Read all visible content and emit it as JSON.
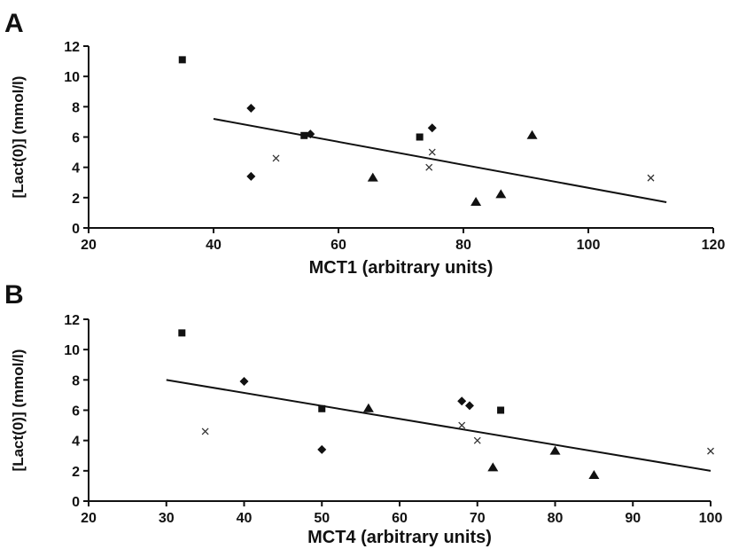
{
  "chart_data": [
    {
      "panel": "A",
      "type": "scatter",
      "xlabel": "MCT1 (arbitrary units)",
      "ylabel": "[Lact(0)] (mmol/l)",
      "xlim": [
        20,
        120
      ],
      "ylim": [
        0,
        12
      ],
      "xticks": [
        20,
        40,
        60,
        80,
        100,
        120
      ],
      "yticks": [
        0,
        2,
        4,
        6,
        8,
        10,
        12
      ],
      "grid": false,
      "series": [
        {
          "marker": "square",
          "points": [
            {
              "x": 35,
              "y": 11.1
            },
            {
              "x": 54.5,
              "y": 6.1
            },
            {
              "x": 73,
              "y": 6.0
            }
          ]
        },
        {
          "marker": "diamond",
          "points": [
            {
              "x": 46,
              "y": 7.9
            },
            {
              "x": 55.5,
              "y": 6.2
            },
            {
              "x": 75,
              "y": 6.6
            },
            {
              "x": 46,
              "y": 3.4
            }
          ]
        },
        {
          "marker": "triangle",
          "points": [
            {
              "x": 65.5,
              "y": 3.3
            },
            {
              "x": 82,
              "y": 1.7
            },
            {
              "x": 86,
              "y": 2.2
            },
            {
              "x": 91,
              "y": 6.1
            }
          ]
        },
        {
          "marker": "cross",
          "points": [
            {
              "x": 50,
              "y": 4.6
            },
            {
              "x": 74.5,
              "y": 4.0
            },
            {
              "x": 75,
              "y": 5.0
            },
            {
              "x": 110,
              "y": 3.3
            }
          ]
        }
      ],
      "trendline": {
        "x": [
          40,
          112.5
        ],
        "y": [
          7.2,
          1.7
        ]
      }
    },
    {
      "panel": "B",
      "type": "scatter",
      "xlabel": "MCT4 (arbitrary units)",
      "ylabel": "[Lact(0)] (mmol/l)",
      "xlim": [
        20,
        100
      ],
      "ylim": [
        0,
        12
      ],
      "xticks": [
        20,
        30,
        40,
        50,
        60,
        70,
        80,
        90,
        100
      ],
      "yticks": [
        0,
        2,
        4,
        6,
        8,
        10,
        12
      ],
      "grid": false,
      "series": [
        {
          "marker": "square",
          "points": [
            {
              "x": 32,
              "y": 11.1
            },
            {
              "x": 50,
              "y": 6.1
            },
            {
              "x": 73,
              "y": 6.0
            }
          ]
        },
        {
          "marker": "diamond",
          "points": [
            {
              "x": 40,
              "y": 7.9
            },
            {
              "x": 68,
              "y": 6.6
            },
            {
              "x": 69,
              "y": 6.3
            },
            {
              "x": 50,
              "y": 3.4
            }
          ]
        },
        {
          "marker": "triangle",
          "points": [
            {
              "x": 56,
              "y": 6.1
            },
            {
              "x": 72,
              "y": 2.2
            },
            {
              "x": 80,
              "y": 3.3
            },
            {
              "x": 85,
              "y": 1.7
            }
          ]
        },
        {
          "marker": "cross",
          "points": [
            {
              "x": 35,
              "y": 4.6
            },
            {
              "x": 68,
              "y": 5.0
            },
            {
              "x": 70,
              "y": 4.0
            },
            {
              "x": 100,
              "y": 3.3
            }
          ]
        }
      ],
      "trendline": {
        "x": [
          30,
          100
        ],
        "y": [
          8.0,
          2.0
        ]
      }
    }
  ]
}
